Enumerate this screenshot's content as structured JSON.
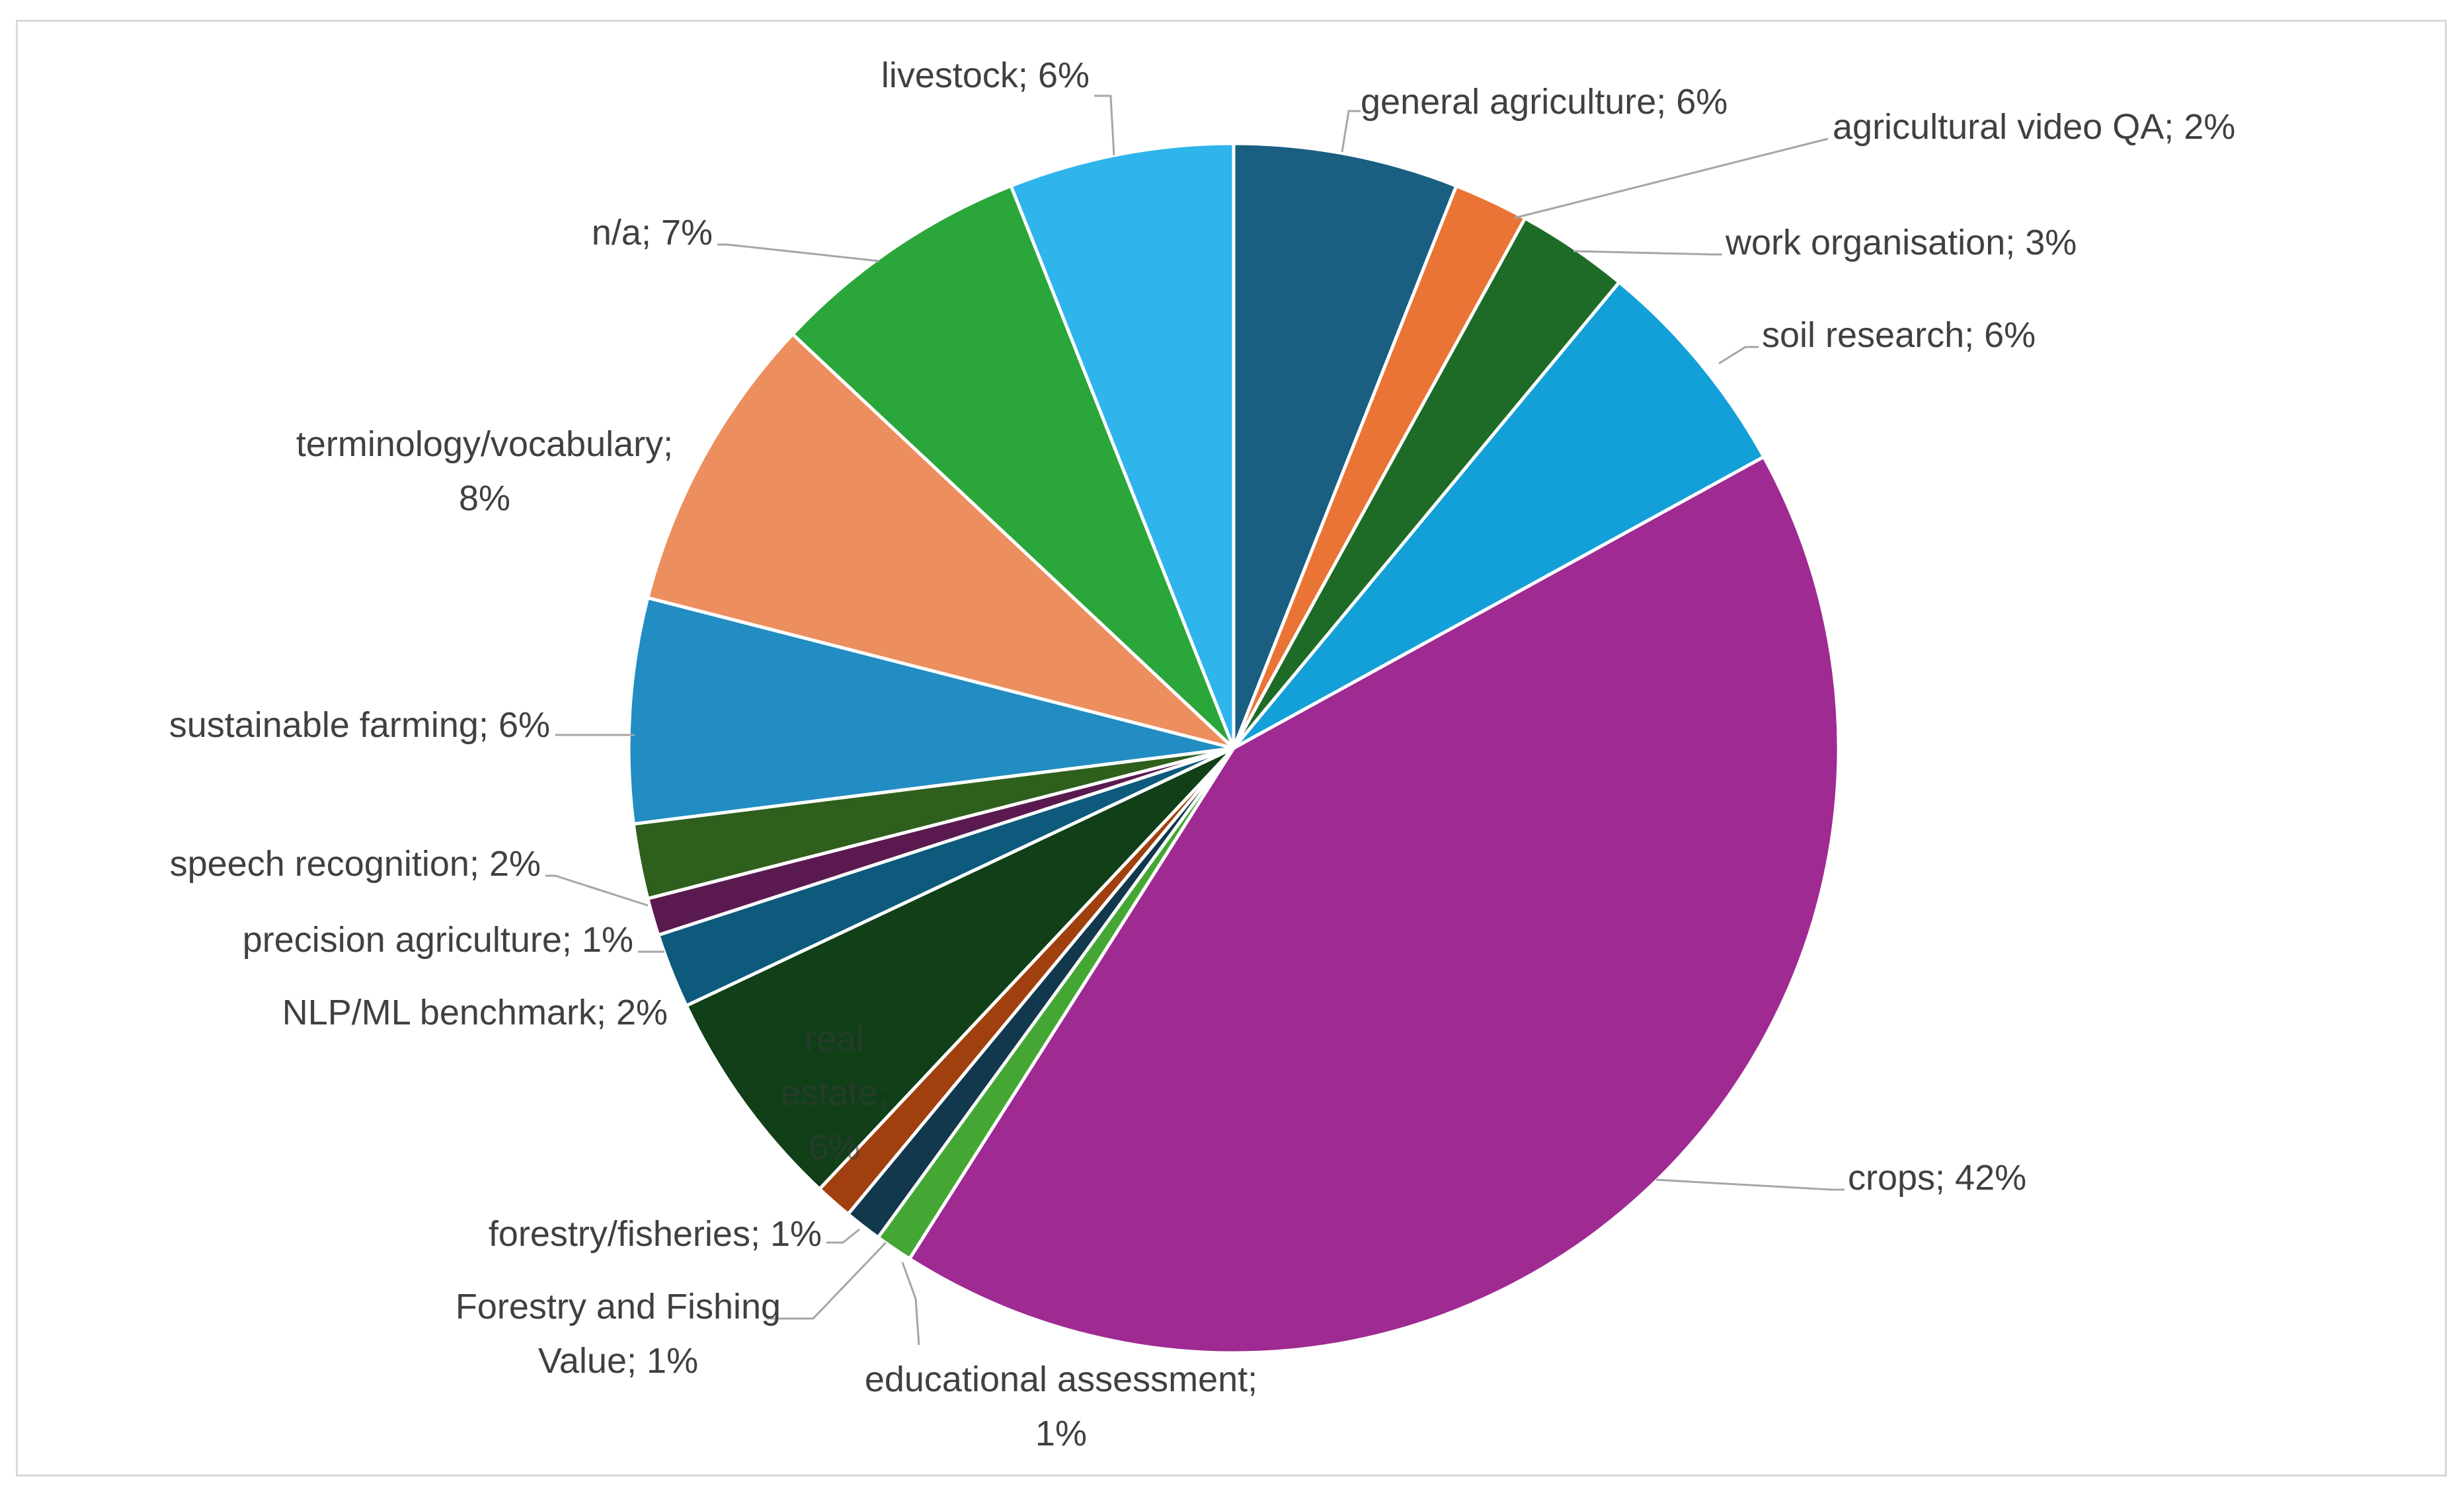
{
  "chart_data": {
    "type": "pie",
    "title": "",
    "slices": [
      {
        "label": "general agriculture",
        "value": 6,
        "color": "#1a5e82"
      },
      {
        "label": "agricultural video QA",
        "value": 2,
        "color": "#ea7435"
      },
      {
        "label": "work organisation",
        "value": 3,
        "color": "#1e6b27"
      },
      {
        "label": "soil research",
        "value": 6,
        "color": "#13a0d8"
      },
      {
        "label": "crops",
        "value": 42,
        "color": "#9e2a92"
      },
      {
        "label": "educational assessment",
        "value": 1,
        "color": "#45a733"
      },
      {
        "label": "Forestry and Fishing Value",
        "value": 1,
        "color": "#12384d"
      },
      {
        "label": "forestry/fisheries",
        "value": 1,
        "color": "#a0400f"
      },
      {
        "label": "real estate",
        "value": 6,
        "color": "#103f18"
      },
      {
        "label": "NLP/ML benchmark",
        "value": 2,
        "color": "#0d5a7c"
      },
      {
        "label": "precision agriculture",
        "value": 1,
        "color": "#5a1a50"
      },
      {
        "label": "speech recognition",
        "value": 2,
        "color": "#2f5f1c"
      },
      {
        "label": "sustainable farming",
        "value": 6,
        "color": "#218dc2"
      },
      {
        "label": "terminology/vocabulary",
        "value": 8,
        "color": "#ec8e5e"
      },
      {
        "label": "n/a",
        "value": 7,
        "color": "#2aa63b"
      },
      {
        "label": "livestock",
        "value": 6,
        "color": "#2fb4ec"
      }
    ],
    "data_labels": [
      [
        "general agriculture; 6%"
      ],
      [
        "agricultural video QA; 2%"
      ],
      [
        "work organisation; 3%"
      ],
      [
        "soil research; 6%"
      ],
      [
        "crops; 42%"
      ],
      [
        "educational assessment;",
        "1%"
      ],
      [
        "Forestry and Fishing",
        "Value; 1%"
      ],
      [
        "forestry/fisheries; 1%"
      ],
      [
        "real",
        "estate;",
        "6%"
      ],
      [
        "NLP/ML benchmark; 2%"
      ],
      [
        "precision agriculture; 1%"
      ],
      [
        "speech recognition; 2%"
      ],
      [
        "sustainable farming; 6%"
      ],
      [
        "terminology/vocabulary;",
        "8%"
      ],
      [
        "n/a; 7%"
      ],
      [
        "livestock; 6%"
      ]
    ],
    "legend": "none"
  }
}
